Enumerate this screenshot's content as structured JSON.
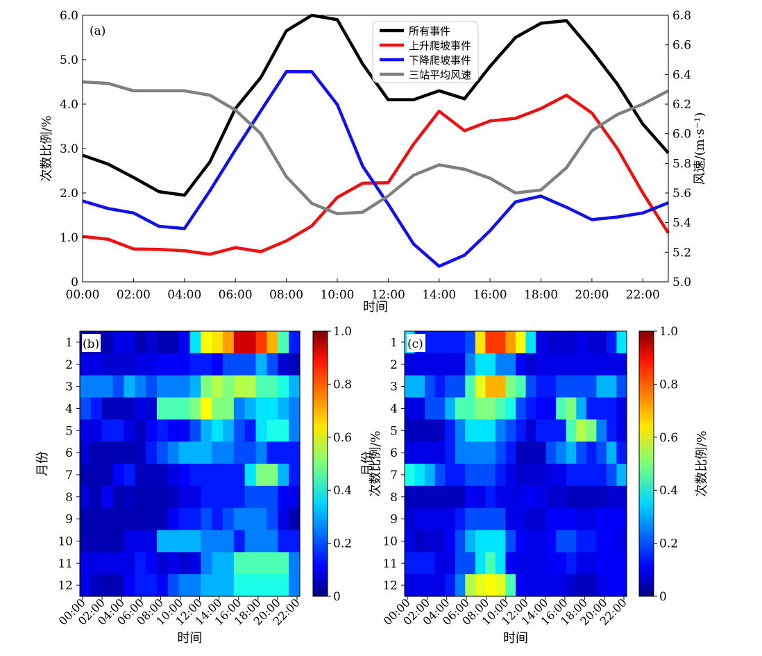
{
  "chart_data": [
    {
      "panel": "a",
      "panel_label": "(a)",
      "type": "line",
      "xlabel": "时间",
      "ylabel_left": "次数比例/%",
      "ylabel_right": "风速/(m·s⁻¹)",
      "x": [
        0,
        1,
        2,
        3,
        4,
        5,
        6,
        7,
        8,
        9,
        10,
        11,
        12,
        13,
        14,
        15,
        16,
        17,
        18,
        19,
        20,
        21,
        22,
        23
      ],
      "x_tick_labels": [
        "00:00",
        "02:00",
        "04:00",
        "06:00",
        "08:00",
        "10:00",
        "12:00",
        "14:00",
        "16:00",
        "18:00",
        "20:00",
        "22:00"
      ],
      "ylim_left": [
        0,
        6.0
      ],
      "left_ticks": [
        "0",
        "1.0",
        "2.0",
        "3.0",
        "4.0",
        "5.0",
        "6.0"
      ],
      "ylim_right": [
        5.0,
        6.8
      ],
      "right_ticks": [
        "5.0",
        "5.2",
        "5.4",
        "5.6",
        "5.8",
        "6.0",
        "6.2",
        "6.4",
        "6.6",
        "6.8"
      ],
      "legend_position": "top-center",
      "series": [
        {
          "name": "所有事件",
          "axis": "left",
          "color": "#000000",
          "values": [
            2.85,
            2.65,
            2.35,
            2.03,
            1.95,
            2.7,
            3.9,
            4.6,
            5.65,
            6.0,
            5.9,
            4.9,
            4.1,
            4.1,
            4.3,
            4.12,
            4.85,
            5.5,
            5.82,
            5.88,
            5.2,
            4.45,
            3.55,
            2.9
          ]
        },
        {
          "name": "上升爬坡事件",
          "axis": "left",
          "color": "#ee1111",
          "values": [
            1.02,
            0.96,
            0.74,
            0.73,
            0.7,
            0.62,
            0.77,
            0.68,
            0.92,
            1.26,
            1.9,
            2.22,
            2.23,
            3.1,
            3.84,
            3.4,
            3.62,
            3.68,
            3.9,
            4.2,
            3.8,
            3.0,
            2.0,
            1.1
          ]
        },
        {
          "name": "下降爬坡事件",
          "axis": "left",
          "color": "#1111ee",
          "values": [
            1.82,
            1.65,
            1.55,
            1.25,
            1.2,
            2.05,
            2.97,
            3.85,
            4.73,
            4.73,
            3.99,
            2.6,
            1.75,
            0.85,
            0.35,
            0.6,
            1.15,
            1.8,
            1.93,
            1.68,
            1.4,
            1.46,
            1.55,
            1.78
          ]
        },
        {
          "name": "三站平均风速",
          "axis": "right",
          "color": "#808080",
          "values": [
            6.35,
            6.34,
            6.29,
            6.29,
            6.29,
            6.26,
            6.16,
            6.0,
            5.71,
            5.53,
            5.46,
            5.47,
            5.58,
            5.72,
            5.79,
            5.76,
            5.7,
            5.6,
            5.62,
            5.77,
            6.02,
            6.13,
            6.2,
            6.29
          ]
        }
      ]
    },
    {
      "panel": "b",
      "panel_label": "(b)",
      "type": "heatmap",
      "xlabel": "时间",
      "ylabel": "月份",
      "x_tick_labels": [
        "00:00",
        "02:00",
        "04:00",
        "06:00",
        "08:00",
        "10:00",
        "12:00",
        "14:00",
        "16:00",
        "18:00",
        "20:00",
        "22:00"
      ],
      "y_labels": [
        "1",
        "2",
        "3",
        "4",
        "5",
        "6",
        "7",
        "8",
        "9",
        "10",
        "11",
        "12"
      ],
      "colorbar_label": "次数比例/%",
      "colorbar_range": [
        0,
        1.0
      ],
      "colorbar_ticks": [
        "0",
        "0.2",
        "0.4",
        "0.6",
        "0.8",
        "1.0"
      ],
      "colormap": "jet",
      "values": [
        [
          0.05,
          0.05,
          0.05,
          0.1,
          0.1,
          0.05,
          0.08,
          0.05,
          0.05,
          0.12,
          0.35,
          0.62,
          0.65,
          0.72,
          0.92,
          0.92,
          0.82,
          0.7,
          0.45,
          0.15
        ],
        [
          0.1,
          0.1,
          0.08,
          0.08,
          0.08,
          0.1,
          0.1,
          0.12,
          0.12,
          0.12,
          0.15,
          0.15,
          0.12,
          0.2,
          0.2,
          0.2,
          0.3,
          0.2,
          0.08,
          0.06
        ],
        [
          0.25,
          0.25,
          0.25,
          0.2,
          0.3,
          0.25,
          0.2,
          0.25,
          0.25,
          0.25,
          0.3,
          0.5,
          0.55,
          0.5,
          0.55,
          0.55,
          0.45,
          0.45,
          0.4,
          0.3
        ],
        [
          0.2,
          0.15,
          0.06,
          0.06,
          0.06,
          0.1,
          0.08,
          0.45,
          0.45,
          0.45,
          0.5,
          0.62,
          0.5,
          0.5,
          0.25,
          0.3,
          0.35,
          0.35,
          0.3,
          0.25
        ],
        [
          0.1,
          0.1,
          0.15,
          0.15,
          0.1,
          0.06,
          0.12,
          0.15,
          0.12,
          0.12,
          0.2,
          0.3,
          0.35,
          0.3,
          0.2,
          0.15,
          0.35,
          0.4,
          0.4,
          0.25
        ],
        [
          0.08,
          0.05,
          0.05,
          0.05,
          0.05,
          0.06,
          0.15,
          0.2,
          0.25,
          0.3,
          0.3,
          0.3,
          0.25,
          0.25,
          0.2,
          0.2,
          0.25,
          0.15,
          0.15,
          0.15
        ],
        [
          0.05,
          0.05,
          0.05,
          0.12,
          0.15,
          0.06,
          0.06,
          0.06,
          0.1,
          0.12,
          0.15,
          0.15,
          0.15,
          0.15,
          0.15,
          0.35,
          0.5,
          0.5,
          0.3,
          0.15
        ],
        [
          0.08,
          0.05,
          0.12,
          0.05,
          0.06,
          0.05,
          0.05,
          0.05,
          0.06,
          0.1,
          0.1,
          0.15,
          0.15,
          0.15,
          0.15,
          0.2,
          0.2,
          0.2,
          0.12,
          0.1
        ],
        [
          0.05,
          0.05,
          0.05,
          0.05,
          0.05,
          0.05,
          0.05,
          0.06,
          0.12,
          0.15,
          0.15,
          0.2,
          0.15,
          0.2,
          0.25,
          0.25,
          0.25,
          0.2,
          0.1,
          0.05
        ],
        [
          0.05,
          0.05,
          0.05,
          0.05,
          0.1,
          0.1,
          0.1,
          0.3,
          0.3,
          0.3,
          0.3,
          0.25,
          0.25,
          0.25,
          0.15,
          0.25,
          0.25,
          0.25,
          0.15,
          0.15
        ],
        [
          0.1,
          0.1,
          0.1,
          0.1,
          0.1,
          0.15,
          0.12,
          0.08,
          0.1,
          0.08,
          0.1,
          0.25,
          0.3,
          0.3,
          0.45,
          0.45,
          0.45,
          0.45,
          0.45,
          0.25
        ],
        [
          0.1,
          0.06,
          0.05,
          0.05,
          0.12,
          0.15,
          0.15,
          0.12,
          0.2,
          0.25,
          0.25,
          0.3,
          0.3,
          0.3,
          0.4,
          0.4,
          0.4,
          0.4,
          0.4,
          0.25
        ]
      ]
    },
    {
      "panel": "c",
      "panel_label": "(c)",
      "type": "heatmap",
      "xlabel": "时间",
      "ylabel": "月份",
      "x_tick_labels": [
        "00:00",
        "02:00",
        "04:00",
        "06:00",
        "08:00",
        "10:00",
        "12:00",
        "14:00",
        "16:00",
        "18:00",
        "20:00",
        "22:00"
      ],
      "y_labels": [
        "1",
        "2",
        "3",
        "4",
        "5",
        "6",
        "7",
        "8",
        "9",
        "10",
        "11",
        "12"
      ],
      "colorbar_label": "次数比例/%",
      "colorbar_range": [
        0,
        1.0
      ],
      "colorbar_ticks": [
        "0",
        "0.2",
        "0.4",
        "0.6",
        "0.8",
        "1.0"
      ],
      "colormap": "jet",
      "values": [
        [
          0.35,
          0.15,
          0.15,
          0.15,
          0.15,
          0.15,
          0.2,
          0.65,
          0.82,
          0.82,
          0.72,
          0.62,
          0.35,
          0.1,
          0.08,
          0.08,
          0.08,
          0.1,
          0.08,
          0.08,
          0.15,
          0.35
        ],
        [
          0.1,
          0.1,
          0.1,
          0.1,
          0.1,
          0.1,
          0.25,
          0.35,
          0.35,
          0.25,
          0.25,
          0.12,
          0.08,
          0.1,
          0.1,
          0.1,
          0.1,
          0.1,
          0.1,
          0.1,
          0.1,
          0.1
        ],
        [
          0.3,
          0.3,
          0.2,
          0.15,
          0.2,
          0.2,
          0.45,
          0.6,
          0.7,
          0.7,
          0.5,
          0.45,
          0.2,
          0.15,
          0.15,
          0.2,
          0.2,
          0.2,
          0.2,
          0.3,
          0.3,
          0.2
        ],
        [
          0.1,
          0.1,
          0.2,
          0.2,
          0.3,
          0.45,
          0.45,
          0.5,
          0.5,
          0.45,
          0.4,
          0.2,
          0.15,
          0.12,
          0.12,
          0.45,
          0.5,
          0.3,
          0.15,
          0.15,
          0.15,
          0.1
        ],
        [
          0.06,
          0.06,
          0.06,
          0.06,
          0.15,
          0.25,
          0.35,
          0.35,
          0.35,
          0.25,
          0.2,
          0.15,
          0.08,
          0.15,
          0.15,
          0.15,
          0.45,
          0.55,
          0.5,
          0.25,
          0.15,
          0.1
        ],
        [
          0.1,
          0.1,
          0.1,
          0.1,
          0.15,
          0.25,
          0.25,
          0.25,
          0.25,
          0.2,
          0.15,
          0.06,
          0.06,
          0.06,
          0.2,
          0.25,
          0.3,
          0.2,
          0.15,
          0.2,
          0.3,
          0.15
        ],
        [
          0.4,
          0.35,
          0.3,
          0.2,
          0.15,
          0.15,
          0.2,
          0.2,
          0.2,
          0.15,
          0.1,
          0.08,
          0.08,
          0.08,
          0.1,
          0.1,
          0.15,
          0.15,
          0.15,
          0.15,
          0.2,
          0.3
        ],
        [
          0.06,
          0.06,
          0.06,
          0.06,
          0.06,
          0.06,
          0.12,
          0.1,
          0.15,
          0.1,
          0.1,
          0.1,
          0.12,
          0.1,
          0.08,
          0.08,
          0.06,
          0.06,
          0.06,
          0.06,
          0.08,
          0.08
        ],
        [
          0.08,
          0.1,
          0.1,
          0.1,
          0.1,
          0.15,
          0.2,
          0.2,
          0.2,
          0.2,
          0.1,
          0.1,
          0.08,
          0.08,
          0.12,
          0.12,
          0.12,
          0.1,
          0.1,
          0.12,
          0.12,
          0.12
        ],
        [
          0.1,
          0.06,
          0.08,
          0.08,
          0.12,
          0.2,
          0.3,
          0.35,
          0.35,
          0.35,
          0.2,
          0.12,
          0.1,
          0.1,
          0.12,
          0.2,
          0.2,
          0.15,
          0.15,
          0.12,
          0.12,
          0.1
        ],
        [
          0.15,
          0.15,
          0.15,
          0.1,
          0.1,
          0.2,
          0.2,
          0.35,
          0.45,
          0.35,
          0.12,
          0.1,
          0.1,
          0.1,
          0.12,
          0.12,
          0.15,
          0.1,
          0.1,
          0.12,
          0.12,
          0.12
        ],
        [
          0.1,
          0.1,
          0.1,
          0.1,
          0.15,
          0.25,
          0.55,
          0.6,
          0.62,
          0.6,
          0.45,
          0.12,
          0.1,
          0.1,
          0.1,
          0.1,
          0.08,
          0.06,
          0.06,
          0.1,
          0.12,
          0.12
        ]
      ]
    }
  ]
}
